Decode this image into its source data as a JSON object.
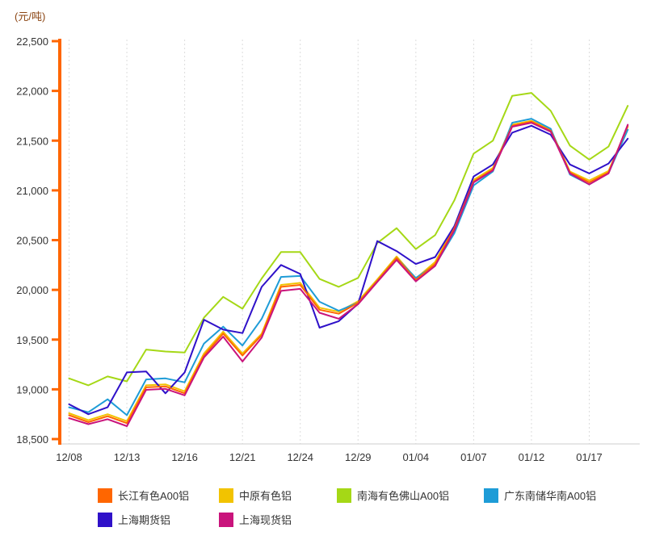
{
  "unit_label": "(元/吨)",
  "colors": {
    "axis": "#FF6600",
    "grid": "#DCDCDC",
    "baseline": "#CCCCCC",
    "tick_text": "#333333",
    "unit_text": "#8B4513"
  },
  "chart_data": {
    "type": "line",
    "title": "",
    "ylabel": "(元/吨)",
    "ylim": [
      18500,
      22500
    ],
    "ytick_step": 500,
    "ytick_labels": [
      "22,500",
      "22,000",
      "21,500",
      "21,000",
      "20,500",
      "20,000",
      "19,500",
      "19,000",
      "18,500"
    ],
    "x_labels": [
      "12/08",
      "12/13",
      "12/16",
      "12/21",
      "12/24",
      "12/29",
      "01/04",
      "01/07",
      "01/12",
      "01/17"
    ],
    "x_label_every": 3,
    "grid": "vertical-dashed",
    "legend_position": "bottom",
    "dates": [
      "12/08",
      "12/09",
      "12/10",
      "12/13",
      "12/14",
      "12/15",
      "12/16",
      "12/17",
      "12/20",
      "12/21",
      "12/22",
      "12/23",
      "12/24",
      "12/27",
      "12/28",
      "12/29",
      "12/30",
      "12/31",
      "01/04",
      "01/05",
      "01/06",
      "01/07",
      "01/10",
      "01/11",
      "01/12",
      "01/13",
      "01/14",
      "01/17",
      "01/18",
      "01/19"
    ],
    "series": [
      {
        "name": "长江有色A00铝",
        "color": "#FF6600",
        "values": [
          18740,
          18670,
          18730,
          18660,
          19020,
          19030,
          18960,
          19340,
          19560,
          19340,
          19545,
          20030,
          20050,
          19800,
          19760,
          19870,
          20090,
          20320,
          20100,
          20260,
          20620,
          21090,
          21210,
          21650,
          21690,
          21600,
          21180,
          21080,
          21180,
          21650
        ]
      },
      {
        "name": "中原有色铝",
        "color": "#F2C300",
        "values": [
          18760,
          18690,
          18750,
          18680,
          19040,
          19050,
          18980,
          19360,
          19580,
          19360,
          19560,
          20050,
          20070,
          19820,
          19780,
          19885,
          20105,
          20335,
          20115,
          20280,
          20635,
          21105,
          21225,
          21660,
          21700,
          21610,
          21190,
          21100,
          21195,
          21640
        ]
      },
      {
        "name": "南海有色佛山A00铝",
        "color": "#A5D816",
        "values": [
          19110,
          19040,
          19130,
          19080,
          19400,
          19380,
          19370,
          19720,
          19930,
          19810,
          20115,
          20380,
          20380,
          20110,
          20030,
          20120,
          20470,
          20620,
          20410,
          20550,
          20900,
          21370,
          21500,
          21950,
          21980,
          21800,
          21450,
          21310,
          21440,
          21850
        ]
      },
      {
        "name": "广东南储华南A00铝",
        "color": "#1E9CD7",
        "values": [
          18820,
          18770,
          18900,
          18740,
          19100,
          19110,
          19070,
          19460,
          19630,
          19440,
          19710,
          20130,
          20140,
          19880,
          19790,
          19870,
          20090,
          20320,
          20120,
          20250,
          20570,
          21050,
          21190,
          21680,
          21720,
          21620,
          21160,
          21060,
          21175,
          21610
        ]
      },
      {
        "name": "上海期货铝",
        "color": "#2F11C9",
        "values": [
          18850,
          18750,
          18820,
          19170,
          19180,
          18960,
          19170,
          19700,
          19600,
          19565,
          20030,
          20250,
          20160,
          19620,
          19685,
          19860,
          20490,
          20390,
          20260,
          20330,
          20640,
          21140,
          21260,
          21580,
          21650,
          21560,
          21260,
          21170,
          21270,
          21520
        ]
      },
      {
        "name": "上海现货铝",
        "color": "#C9147C",
        "values": [
          18710,
          18650,
          18700,
          18630,
          18995,
          19005,
          18940,
          19320,
          19530,
          19280,
          19520,
          19990,
          20010,
          19770,
          19710,
          19855,
          20080,
          20300,
          20085,
          20240,
          20600,
          21080,
          21200,
          21640,
          21680,
          21590,
          21170,
          21060,
          21170,
          21660
        ]
      }
    ],
    "draw_order": [
      2,
      1,
      3,
      4,
      0,
      5
    ],
    "legend_columns_x": [
      121,
      271,
      417,
      599
    ],
    "legend_rows_y": [
      604,
      634
    ]
  }
}
